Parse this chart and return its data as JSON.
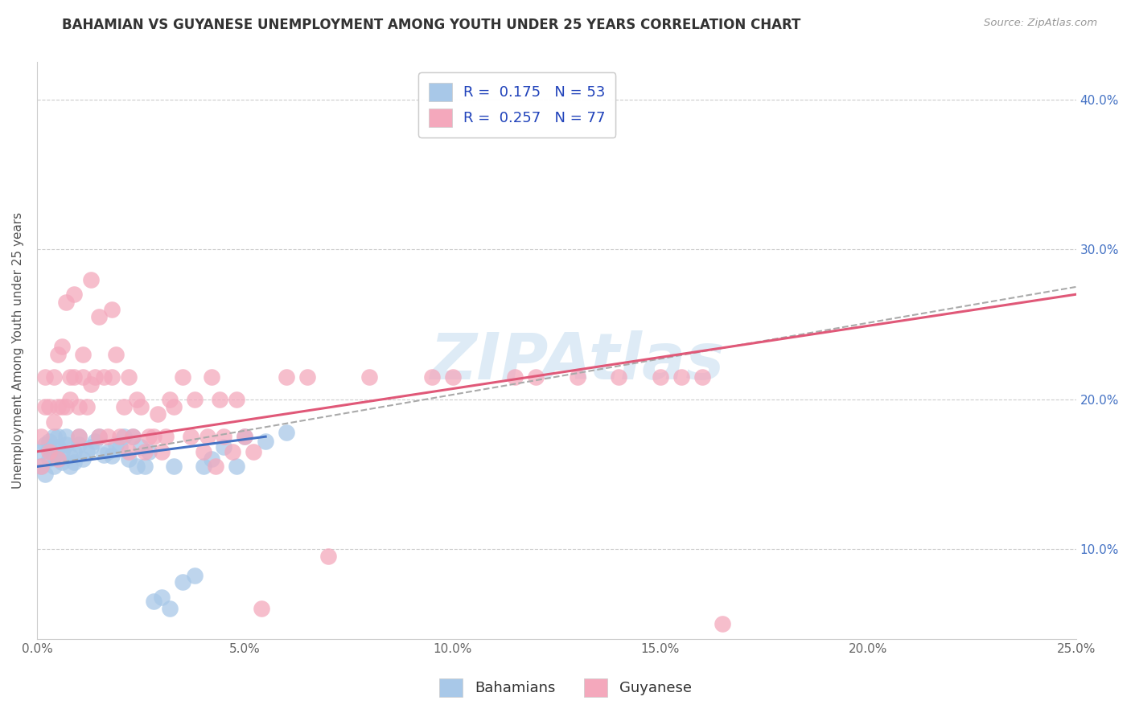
{
  "title": "BAHAMIAN VS GUYANESE UNEMPLOYMENT AMONG YOUTH UNDER 25 YEARS CORRELATION CHART",
  "source": "Source: ZipAtlas.com",
  "ylabel": "Unemployment Among Youth under 25 years",
  "xlim": [
    0.0,
    0.25
  ],
  "ylim": [
    0.04,
    0.425
  ],
  "xtick_vals": [
    0.0,
    0.05,
    0.1,
    0.15,
    0.2,
    0.25
  ],
  "xtick_labels": [
    "0.0%",
    "5.0%",
    "10.0%",
    "15.0%",
    "20.0%",
    "25.0%"
  ],
  "ytick_vals": [
    0.1,
    0.2,
    0.3,
    0.4
  ],
  "ytick_labels": [
    "10.0%",
    "20.0%",
    "30.0%",
    "40.0%"
  ],
  "R_blue": 0.175,
  "N_blue": 53,
  "R_pink": 0.257,
  "N_pink": 77,
  "blue_scatter_color": "#a8c8e8",
  "pink_scatter_color": "#f4a8bc",
  "blue_line_color": "#4472c4",
  "pink_line_color": "#e05878",
  "dash_line_color": "#aaaaaa",
  "watermark_color": "#c8dff0",
  "legend_label_blue": "Bahamians",
  "legend_label_pink": "Guyanese",
  "blue_x": [
    0.001,
    0.001,
    0.002,
    0.002,
    0.003,
    0.003,
    0.003,
    0.004,
    0.004,
    0.004,
    0.005,
    0.005,
    0.005,
    0.006,
    0.006,
    0.007,
    0.007,
    0.008,
    0.008,
    0.009,
    0.009,
    0.01,
    0.01,
    0.011,
    0.012,
    0.013,
    0.014,
    0.015,
    0.016,
    0.017,
    0.018,
    0.019,
    0.02,
    0.021,
    0.022,
    0.023,
    0.024,
    0.025,
    0.026,
    0.027,
    0.028,
    0.03,
    0.032,
    0.033,
    0.035,
    0.038,
    0.04,
    0.042,
    0.045,
    0.048,
    0.05,
    0.055,
    0.06
  ],
  "blue_y": [
    0.155,
    0.165,
    0.15,
    0.17,
    0.16,
    0.172,
    0.168,
    0.155,
    0.162,
    0.175,
    0.16,
    0.168,
    0.175,
    0.158,
    0.165,
    0.17,
    0.175,
    0.155,
    0.162,
    0.158,
    0.165,
    0.17,
    0.175,
    0.16,
    0.165,
    0.168,
    0.172,
    0.175,
    0.163,
    0.165,
    0.162,
    0.17,
    0.168,
    0.175,
    0.16,
    0.175,
    0.155,
    0.168,
    0.155,
    0.165,
    0.065,
    0.068,
    0.06,
    0.155,
    0.078,
    0.082,
    0.155,
    0.16,
    0.168,
    0.155,
    0.175,
    0.172,
    0.178
  ],
  "pink_x": [
    0.001,
    0.001,
    0.002,
    0.002,
    0.003,
    0.003,
    0.004,
    0.004,
    0.005,
    0.005,
    0.005,
    0.006,
    0.006,
    0.007,
    0.007,
    0.008,
    0.008,
    0.009,
    0.009,
    0.01,
    0.01,
    0.011,
    0.011,
    0.012,
    0.013,
    0.013,
    0.014,
    0.015,
    0.015,
    0.016,
    0.017,
    0.018,
    0.018,
    0.019,
    0.02,
    0.021,
    0.022,
    0.022,
    0.023,
    0.024,
    0.025,
    0.026,
    0.027,
    0.028,
    0.029,
    0.03,
    0.031,
    0.032,
    0.033,
    0.035,
    0.037,
    0.038,
    0.04,
    0.041,
    0.042,
    0.043,
    0.044,
    0.045,
    0.047,
    0.048,
    0.05,
    0.052,
    0.054,
    0.06,
    0.065,
    0.07,
    0.08,
    0.095,
    0.1,
    0.115,
    0.12,
    0.13,
    0.14,
    0.15,
    0.155,
    0.16,
    0.165
  ],
  "pink_y": [
    0.155,
    0.175,
    0.195,
    0.215,
    0.165,
    0.195,
    0.185,
    0.215,
    0.16,
    0.195,
    0.23,
    0.195,
    0.235,
    0.265,
    0.195,
    0.215,
    0.2,
    0.215,
    0.27,
    0.175,
    0.195,
    0.215,
    0.23,
    0.195,
    0.21,
    0.28,
    0.215,
    0.175,
    0.255,
    0.215,
    0.175,
    0.215,
    0.26,
    0.23,
    0.175,
    0.195,
    0.165,
    0.215,
    0.175,
    0.2,
    0.195,
    0.165,
    0.175,
    0.175,
    0.19,
    0.165,
    0.175,
    0.2,
    0.195,
    0.215,
    0.175,
    0.2,
    0.165,
    0.175,
    0.215,
    0.155,
    0.2,
    0.175,
    0.165,
    0.2,
    0.175,
    0.165,
    0.06,
    0.215,
    0.215,
    0.095,
    0.215,
    0.215,
    0.215,
    0.215,
    0.215,
    0.215,
    0.215,
    0.215,
    0.215,
    0.215,
    0.05
  ],
  "blue_trend_x": [
    0.0,
    0.055
  ],
  "blue_trend_y": [
    0.155,
    0.175
  ],
  "pink_trend_x": [
    0.0,
    0.25
  ],
  "pink_trend_y": [
    0.165,
    0.27
  ],
  "dash_trend_x": [
    0.0,
    0.25
  ],
  "dash_trend_y": [
    0.155,
    0.275
  ]
}
